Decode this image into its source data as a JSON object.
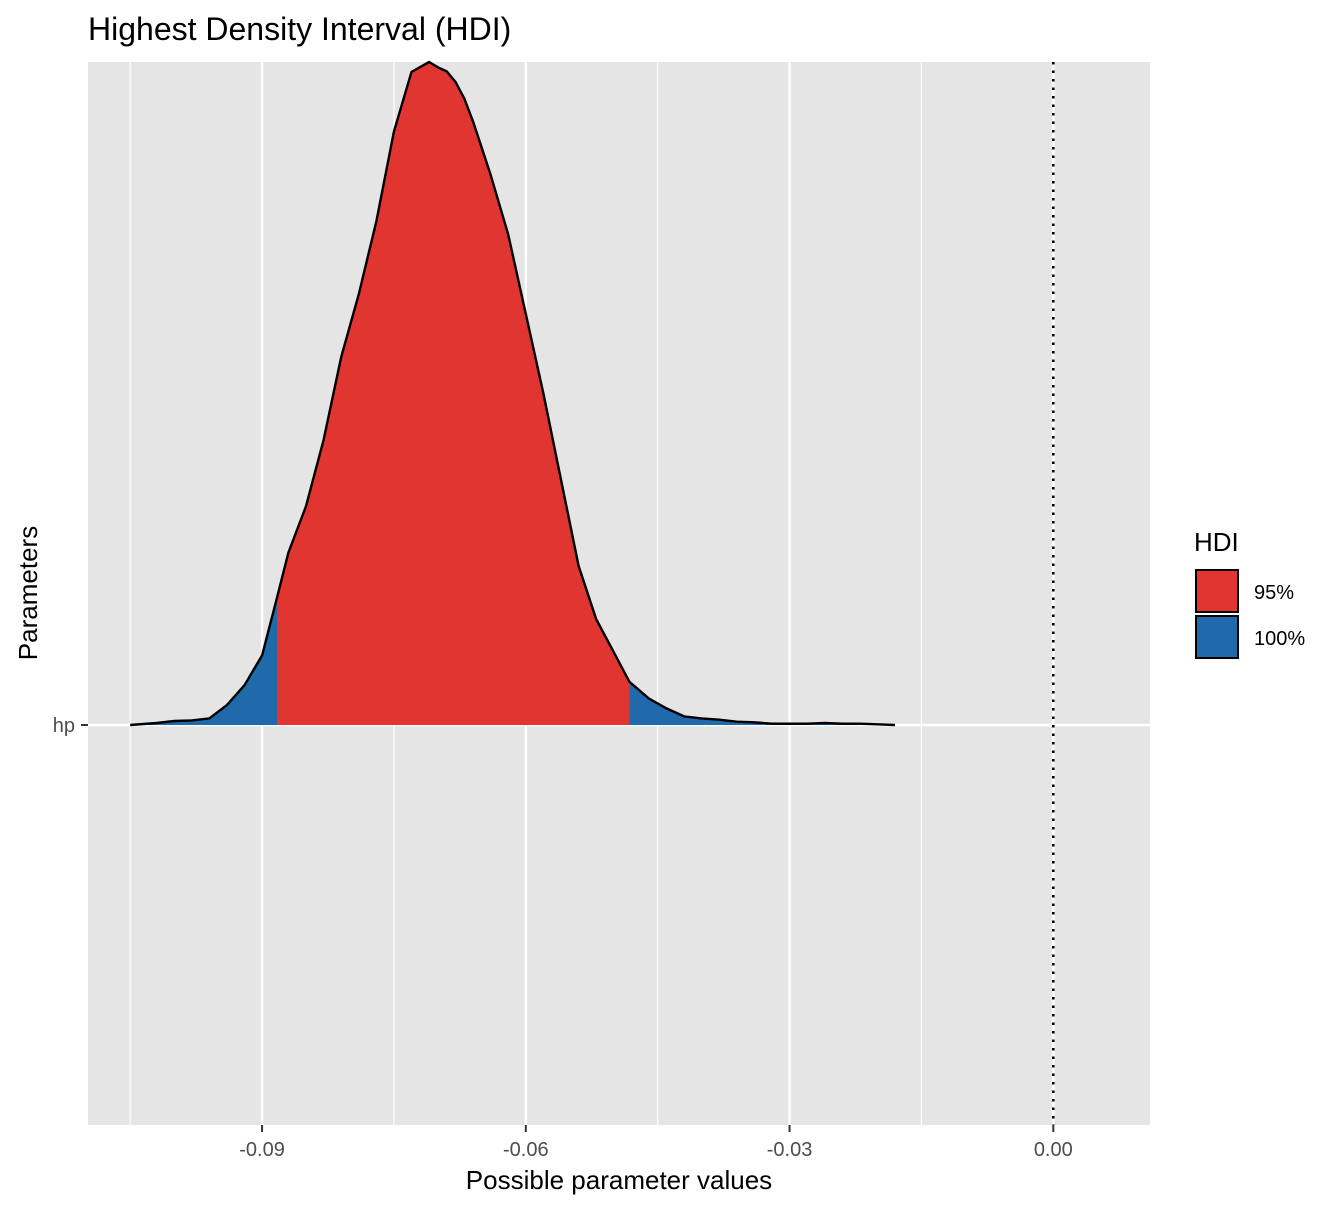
{
  "chart_data": {
    "type": "area",
    "title": "Highest Density Interval (HDI)",
    "xlabel": "Possible parameter values",
    "ylabel": "Parameters",
    "xlim": [
      -0.1098,
      0.011
    ],
    "x_ticks": [
      "-0.09",
      "-0.06",
      "-0.03",
      "0.00"
    ],
    "x_tick_values": [
      -0.09,
      -0.06,
      -0.03,
      0.0
    ],
    "y_categories": [
      "hp"
    ],
    "reference_line": {
      "x": 0.0,
      "style": "dotted"
    },
    "grid": true,
    "legend": {
      "title": "HDI",
      "position": "right",
      "entries": [
        {
          "label": "95%",
          "color": "#e03530"
        },
        {
          "label": "100%",
          "color": "#206aab"
        }
      ]
    },
    "hdi_95": [
      -0.0883,
      -0.0482
    ],
    "density": {
      "x": [
        -0.105,
        -0.102,
        -0.1,
        -0.098,
        -0.096,
        -0.094,
        -0.092,
        -0.09,
        -0.0883,
        -0.087,
        -0.085,
        -0.083,
        -0.081,
        -0.079,
        -0.077,
        -0.075,
        -0.073,
        -0.071,
        -0.07,
        -0.069,
        -0.068,
        -0.067,
        -0.066,
        -0.065,
        -0.064,
        -0.062,
        -0.06,
        -0.058,
        -0.056,
        -0.054,
        -0.052,
        -0.05,
        -0.0482,
        -0.046,
        -0.044,
        -0.042,
        -0.04,
        -0.038,
        -0.036,
        -0.034,
        -0.032,
        -0.03,
        -0.028,
        -0.026,
        -0.024,
        -0.022,
        -0.02,
        -0.018
      ],
      "y": [
        0.0,
        0.003,
        0.006,
        0.007,
        0.01,
        0.03,
        0.06,
        0.105,
        0.192,
        0.26,
        0.33,
        0.43,
        0.555,
        0.65,
        0.76,
        0.895,
        0.985,
        1.0,
        0.992,
        0.986,
        0.97,
        0.945,
        0.91,
        0.87,
        0.83,
        0.74,
        0.62,
        0.5,
        0.37,
        0.24,
        0.16,
        0.11,
        0.065,
        0.04,
        0.025,
        0.013,
        0.01,
        0.008,
        0.005,
        0.004,
        0.002,
        0.002,
        0.002,
        0.003,
        0.002,
        0.002,
        0.001,
        0.0
      ]
    }
  }
}
